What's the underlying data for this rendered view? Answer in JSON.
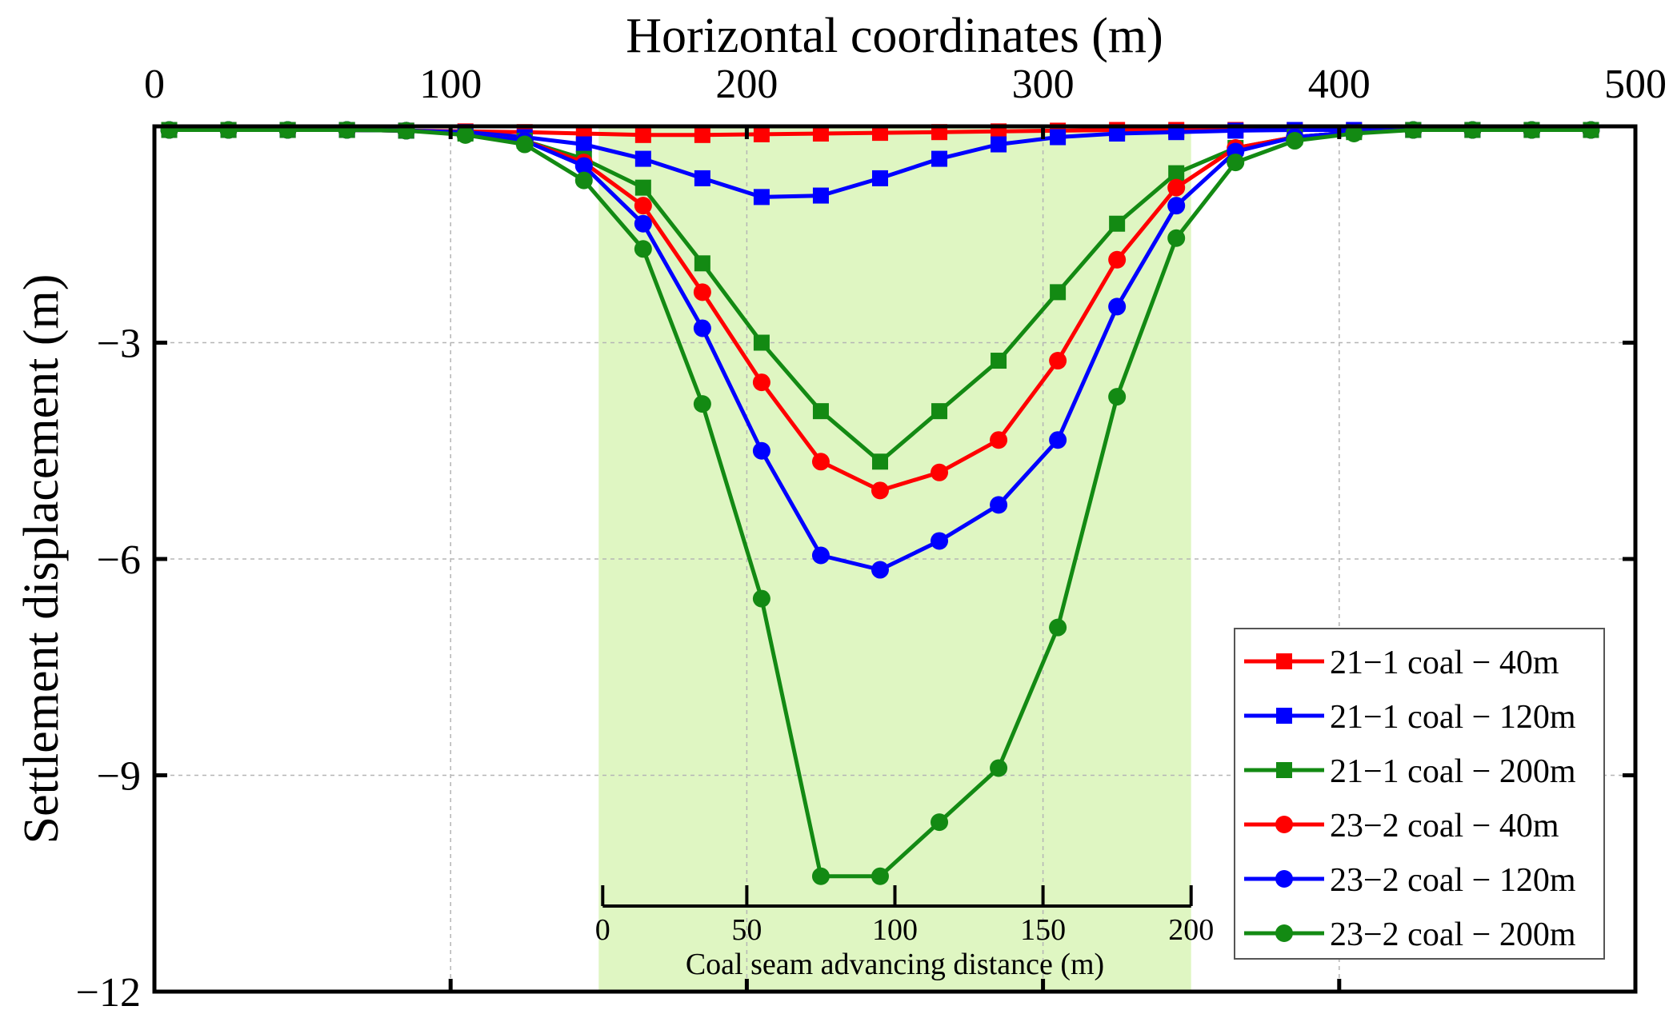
{
  "chart_data": {
    "type": "line",
    "title": "",
    "xlabel": "Horizontal coordinates (m)",
    "ylabel": "Settlement displacement (m)",
    "xlim": [
      0,
      500
    ],
    "ylim": [
      -12,
      0
    ],
    "x_ticks": [
      "0",
      "100",
      "200",
      "300",
      "400",
      "500"
    ],
    "y_ticks": [
      "−3",
      "−6",
      "−9",
      "−12"
    ],
    "grid": true,
    "inset_axis": {
      "label": "Coal seam advancing distance (m)",
      "range": [
        0,
        200
      ],
      "ticks": [
        "0",
        "50",
        "100",
        "150",
        "200"
      ],
      "shaded_region_x": [
        150,
        350
      ]
    },
    "legend_position": "bottom-right",
    "x": [
      5,
      25,
      45,
      65,
      85,
      105,
      125,
      145,
      165,
      185,
      205,
      225,
      245,
      265,
      285,
      305,
      325,
      345,
      365,
      385,
      405,
      425,
      445,
      465,
      485
    ],
    "series": [
      {
        "name": "21−1 coal − 40m",
        "color": "#ff0000",
        "marker": "square",
        "values": [
          -0.05,
          -0.05,
          -0.05,
          -0.05,
          -0.06,
          -0.07,
          -0.08,
          -0.1,
          -0.12,
          -0.12,
          -0.11,
          -0.1,
          -0.09,
          -0.08,
          -0.07,
          -0.06,
          -0.05,
          -0.05,
          -0.05,
          -0.05,
          -0.05,
          -0.05,
          -0.05,
          -0.05,
          -0.05
        ]
      },
      {
        "name": "21−1 coal − 120m",
        "color": "#0000ff",
        "marker": "square",
        "values": [
          -0.05,
          -0.05,
          -0.05,
          -0.05,
          -0.06,
          -0.08,
          -0.15,
          -0.25,
          -0.45,
          -0.72,
          -0.98,
          -0.96,
          -0.72,
          -0.45,
          -0.25,
          -0.15,
          -0.1,
          -0.08,
          -0.06,
          -0.05,
          -0.05,
          -0.05,
          -0.05,
          -0.05,
          -0.05
        ]
      },
      {
        "name": "21−1 coal − 200m",
        "color": "#138a13",
        "marker": "square",
        "values": [
          -0.05,
          -0.05,
          -0.05,
          -0.05,
          -0.06,
          -0.1,
          -0.2,
          -0.45,
          -0.85,
          -1.9,
          -3.0,
          -3.95,
          -4.65,
          -3.95,
          -3.25,
          -2.3,
          -1.35,
          -0.65,
          -0.3,
          -0.15,
          -0.08,
          -0.05,
          -0.05,
          -0.05,
          -0.05
        ]
      },
      {
        "name": "23−2 coal − 40m",
        "color": "#ff0000",
        "marker": "circle",
        "values": [
          -0.05,
          -0.05,
          -0.05,
          -0.05,
          -0.06,
          -0.1,
          -0.2,
          -0.5,
          -1.1,
          -2.3,
          -3.55,
          -4.65,
          -5.05,
          -4.8,
          -4.35,
          -3.25,
          -1.85,
          -0.85,
          -0.3,
          -0.15,
          -0.08,
          -0.05,
          -0.05,
          -0.05,
          -0.05
        ]
      },
      {
        "name": "23−2 coal − 120m",
        "color": "#0000ff",
        "marker": "circle",
        "values": [
          -0.05,
          -0.05,
          -0.05,
          -0.05,
          -0.06,
          -0.1,
          -0.2,
          -0.55,
          -1.35,
          -2.8,
          -4.5,
          -5.95,
          -6.15,
          -5.75,
          -5.25,
          -4.35,
          -2.5,
          -1.1,
          -0.35,
          -0.15,
          -0.08,
          -0.05,
          -0.05,
          -0.05,
          -0.05
        ]
      },
      {
        "name": "23−2 coal − 200m",
        "color": "#138a13",
        "marker": "circle",
        "values": [
          -0.05,
          -0.05,
          -0.05,
          -0.05,
          -0.06,
          -0.12,
          -0.25,
          -0.75,
          -1.7,
          -3.85,
          -6.55,
          -10.4,
          -10.4,
          -9.65,
          -8.9,
          -6.95,
          -3.75,
          -1.55,
          -0.5,
          -0.2,
          -0.1,
          -0.05,
          -0.05,
          -0.05,
          -0.05
        ]
      }
    ]
  }
}
